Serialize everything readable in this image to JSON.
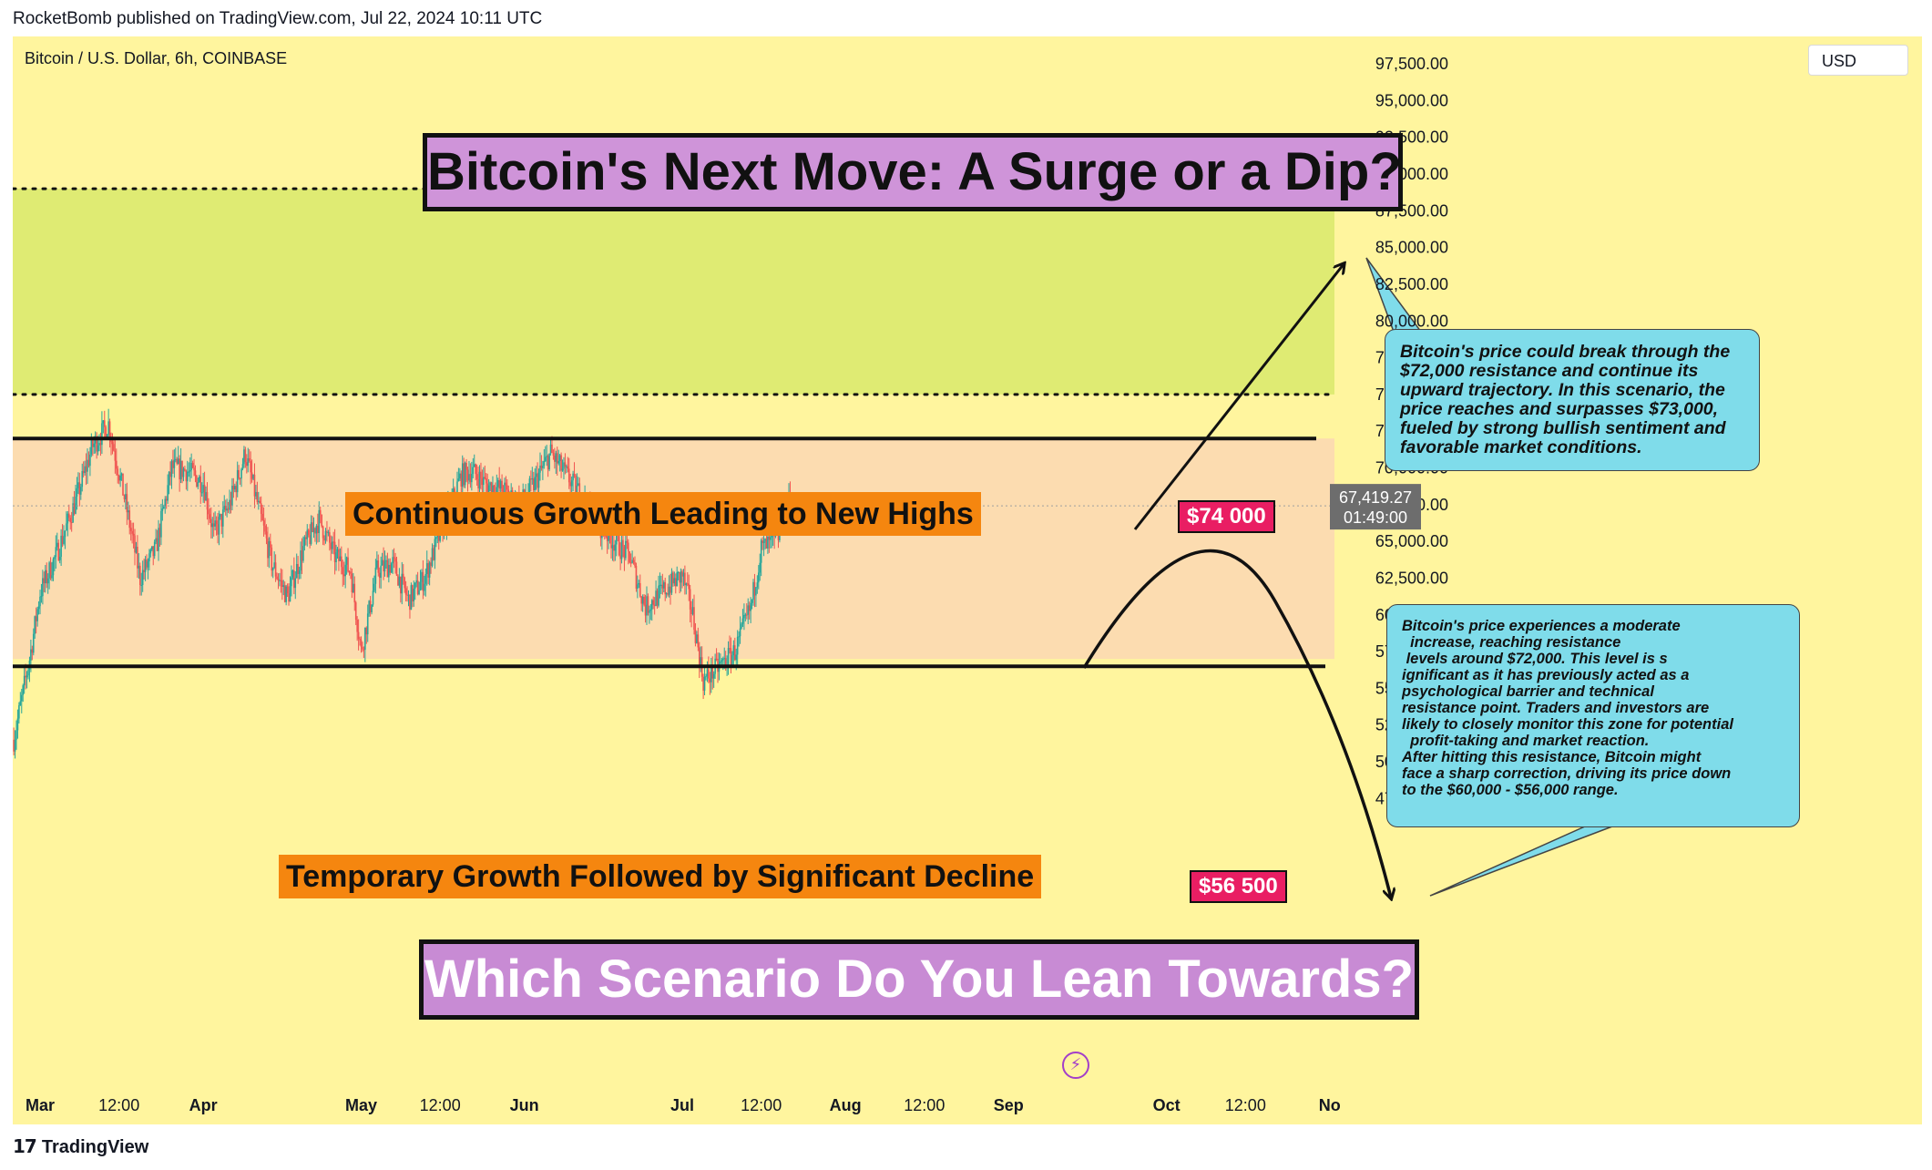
{
  "header": {
    "published": "RocketBomb published on TradingView.com, Jul 22, 2024 10:11 UTC"
  },
  "symbol_line": "Bitcoin / U.S. Dollar, 6h, COINBASE",
  "currency": "USD",
  "title": "Bitcoin's Next Move: A Surge or a Dip?",
  "question": "Which Scenario Do You Lean Towards?",
  "labels": {
    "growth": "Continuous Growth Leading to New Highs",
    "decline": "Temporary Growth Followed by Significant Decline"
  },
  "price_tags": {
    "upper": "$74 000",
    "lower": "$56 500"
  },
  "callout_1": [
    "Bitcoin's price could break through the",
    "$72,000 resistance and continue its",
    "upward trajectory. In this scenario, the",
    "price reaches and surpasses $73,000,",
    "fueled by strong bullish sentiment and",
    "favorable market conditions."
  ],
  "callout_2": [
    "Bitcoin's price experiences a moderate",
    "  increase, reaching resistance",
    " levels around $72,000. This level is s",
    "ignificant as it has previously acted as a",
    "psychological barrier and technical",
    "resistance point. Traders and investors are",
    "likely to closely monitor this zone for potential",
    "  profit-taking and market reaction.",
    "After hitting this resistance, Bitcoin might",
    "face a sharp correction, driving its price down",
    "to the $60,000 - $56,000 range."
  ],
  "last_price": "67,419.27",
  "countdown": "01:49:00",
  "footer": "TradingView",
  "colors": {
    "background": "#fff59e",
    "green_zone": "#dfeb73",
    "range_zone": "#fcdcb0",
    "candle_up": "#26a69a",
    "candle_down": "#ef5350",
    "price_tag": "#e91e63",
    "label_orange": "#f5860f",
    "callout": "#7fdcea",
    "title_box": "#cf94d9"
  },
  "chart_data": {
    "type": "candlestick",
    "title": "Bitcoin / U.S. Dollar, 6h, COINBASE",
    "y_axis": {
      "min": 47500,
      "max": 97500,
      "ticks": [
        "97,500.00",
        "95,000.00",
        "92,500.00",
        "90,000.00",
        "87,500.00",
        "85,000.00",
        "82,500.00",
        "80,000.00",
        "77,500.00",
        "75,000.00",
        "72,500.00",
        "70,000.00",
        "67,500.00",
        "65,000.00",
        "62,500.00",
        "60,000.00",
        "57,500.00",
        "55,000.00",
        "52,500.00",
        "50,000.00",
        "47,500.00"
      ],
      "tick_values": [
        97500,
        95000,
        92500,
        90000,
        87500,
        85000,
        82500,
        80000,
        77500,
        75000,
        72500,
        70000,
        67500,
        65000,
        62500,
        60000,
        57500,
        55000,
        52500,
        50000,
        47500
      ]
    },
    "x_axis": {
      "start": "2024-02-25",
      "end": "2024-11-01",
      "ticks": [
        {
          "label": "Mar",
          "date": "2024-03-01",
          "bold": true
        },
        {
          "label": "12:00",
          "date": "2024-03-16",
          "bold": false
        },
        {
          "label": "Apr",
          "date": "2024-04-01",
          "bold": true
        },
        {
          "label": "May",
          "date": "2024-05-01",
          "bold": true
        },
        {
          "label": "12:00",
          "date": "2024-05-16",
          "bold": false
        },
        {
          "label": "Jun",
          "date": "2024-06-01",
          "bold": true
        },
        {
          "label": "Jul",
          "date": "2024-07-01",
          "bold": true
        },
        {
          "label": "12:00",
          "date": "2024-07-16",
          "bold": false
        },
        {
          "label": "Aug",
          "date": "2024-08-01",
          "bold": true
        },
        {
          "label": "12:00",
          "date": "2024-08-16",
          "bold": false
        },
        {
          "label": "Sep",
          "date": "2024-09-01",
          "bold": true
        },
        {
          "label": "Oct",
          "date": "2024-10-01",
          "bold": true
        },
        {
          "label": "12:00",
          "date": "2024-10-16",
          "bold": false
        },
        {
          "label": "No",
          "date": "2024-11-01",
          "bold": true
        }
      ]
    },
    "zones": [
      {
        "name": "green-zone",
        "from": 75000,
        "to": 89000
      },
      {
        "name": "range-zone",
        "from": 57000,
        "to": 72000
      }
    ],
    "levels": [
      {
        "name": "upper-dotted",
        "value": 89000,
        "style": "dotted"
      },
      {
        "name": "mid-dotted",
        "value": 75000,
        "style": "dotted"
      },
      {
        "name": "resistance",
        "value": 72000,
        "style": "solid"
      },
      {
        "name": "support",
        "value": 56500,
        "style": "solid"
      }
    ],
    "current_price": 67419.27,
    "price_path": [
      {
        "date": "2024-02-25",
        "close": 51500
      },
      {
        "date": "2024-02-28",
        "close": 57000
      },
      {
        "date": "2024-03-01",
        "close": 61500
      },
      {
        "date": "2024-03-04",
        "close": 64000
      },
      {
        "date": "2024-03-08",
        "close": 68000
      },
      {
        "date": "2024-03-11",
        "close": 71500
      },
      {
        "date": "2024-03-14",
        "close": 73000
      },
      {
        "date": "2024-03-17",
        "close": 68000
      },
      {
        "date": "2024-03-20",
        "close": 62500
      },
      {
        "date": "2024-03-23",
        "close": 64500
      },
      {
        "date": "2024-03-26",
        "close": 70000
      },
      {
        "date": "2024-03-29",
        "close": 69800
      },
      {
        "date": "2024-04-01",
        "close": 69000
      },
      {
        "date": "2024-04-03",
        "close": 65500
      },
      {
        "date": "2024-04-06",
        "close": 67500
      },
      {
        "date": "2024-04-09",
        "close": 71000
      },
      {
        "date": "2024-04-12",
        "close": 66500
      },
      {
        "date": "2024-04-14",
        "close": 63500
      },
      {
        "date": "2024-04-17",
        "close": 61200
      },
      {
        "date": "2024-04-20",
        "close": 64500
      },
      {
        "date": "2024-04-23",
        "close": 66500
      },
      {
        "date": "2024-04-26",
        "close": 64000
      },
      {
        "date": "2024-04-29",
        "close": 63000
      },
      {
        "date": "2024-05-01",
        "close": 57500
      },
      {
        "date": "2024-05-04",
        "close": 63000
      },
      {
        "date": "2024-05-07",
        "close": 63500
      },
      {
        "date": "2024-05-10",
        "close": 61000
      },
      {
        "date": "2024-05-13",
        "close": 62500
      },
      {
        "date": "2024-05-16",
        "close": 65500
      },
      {
        "date": "2024-05-20",
        "close": 69500
      },
      {
        "date": "2024-05-22",
        "close": 69800
      },
      {
        "date": "2024-05-25",
        "close": 68800
      },
      {
        "date": "2024-05-28",
        "close": 68500
      },
      {
        "date": "2024-05-31",
        "close": 67500
      },
      {
        "date": "2024-06-03",
        "close": 69000
      },
      {
        "date": "2024-06-06",
        "close": 71000
      },
      {
        "date": "2024-06-09",
        "close": 69500
      },
      {
        "date": "2024-06-12",
        "close": 68000
      },
      {
        "date": "2024-06-15",
        "close": 66200
      },
      {
        "date": "2024-06-18",
        "close": 65000
      },
      {
        "date": "2024-06-21",
        "close": 64000
      },
      {
        "date": "2024-06-24",
        "close": 60500
      },
      {
        "date": "2024-06-27",
        "close": 61500
      },
      {
        "date": "2024-07-01",
        "close": 62700
      },
      {
        "date": "2024-07-03",
        "close": 60000
      },
      {
        "date": "2024-07-05",
        "close": 55500
      },
      {
        "date": "2024-07-08",
        "close": 56500
      },
      {
        "date": "2024-07-11",
        "close": 57500
      },
      {
        "date": "2024-07-14",
        "close": 60500
      },
      {
        "date": "2024-07-16",
        "close": 64500
      },
      {
        "date": "2024-07-19",
        "close": 65000
      },
      {
        "date": "2024-07-21",
        "close": 67800
      },
      {
        "date": "2024-07-22",
        "close": 67419
      }
    ]
  }
}
